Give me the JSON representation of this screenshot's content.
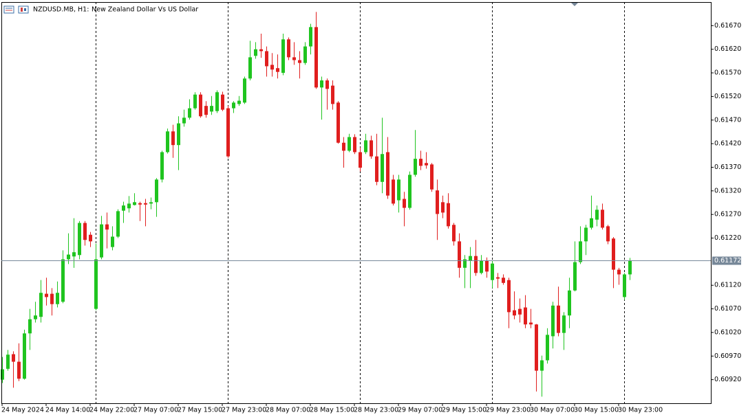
{
  "chart_data": {
    "type": "candlestick",
    "symbol": "NZDUSD.MB, H1:",
    "title": "New Zealand Dollar Vs US Dollar",
    "up_color": "#1fc41f",
    "down_color": "#e01e1e",
    "current_price": 0.61172,
    "current_price_color": "#778899",
    "ylim": [
      0.6087,
      0.6172
    ],
    "yticks": [
      {
        "value": 0.6092,
        "label": "0.60920"
      },
      {
        "value": 0.6097,
        "label": "0.60970"
      },
      {
        "value": 0.6102,
        "label": "0.61020"
      },
      {
        "value": 0.6107,
        "label": "0.61070"
      },
      {
        "value": 0.6112,
        "label": "0.61120"
      },
      {
        "value": 0.6122,
        "label": "0.61220"
      },
      {
        "value": 0.6127,
        "label": "0.61270"
      },
      {
        "value": 0.6132,
        "label": "0.61320"
      },
      {
        "value": 0.6137,
        "label": "0.61370"
      },
      {
        "value": 0.6142,
        "label": "0.61420"
      },
      {
        "value": 0.6147,
        "label": "0.61470"
      },
      {
        "value": 0.6152,
        "label": "0.61520"
      },
      {
        "value": 0.6157,
        "label": "0.61570"
      },
      {
        "value": 0.6162,
        "label": "0.61620"
      },
      {
        "value": 0.6167,
        "label": "0.61670"
      }
    ],
    "categories": [
      "24 May 2024",
      null,
      null,
      null,
      null,
      null,
      null,
      null,
      "24 May 14:00",
      null,
      null,
      null,
      null,
      null,
      null,
      null,
      "24 May 22:00",
      null,
      null,
      null,
      null,
      null,
      null,
      null,
      "27 May 07:00",
      null,
      null,
      null,
      null,
      null,
      null,
      null,
      "27 May 15:00",
      null,
      null,
      null,
      null,
      null,
      null,
      null,
      "27 May 23:00",
      null,
      null,
      null,
      null,
      null,
      null,
      null,
      "28 May 07:00",
      null,
      null,
      null,
      null,
      null,
      null,
      null,
      "28 May 15:00",
      null,
      null,
      null,
      null,
      null,
      null,
      null,
      "28 May 23:00",
      null,
      null,
      null,
      null,
      null,
      null,
      null,
      "29 May 07:00",
      null,
      null,
      null,
      null,
      null,
      null,
      null,
      "29 May 15:00",
      null,
      null,
      null,
      null,
      null,
      null,
      null,
      "29 May 23:00",
      null,
      null,
      null,
      null,
      null,
      null,
      null,
      "30 May 07:00",
      null,
      null,
      null,
      null,
      null,
      null,
      null,
      "30 May 15:00",
      null,
      null,
      null,
      null,
      null,
      null,
      null,
      "30 May 23:00",
      null,
      null
    ],
    "open": [
      0.6092,
      0.60943,
      0.60974,
      0.60958,
      0.60922,
      0.61018,
      0.61048,
      0.61053,
      0.61102,
      0.61102,
      0.6108,
      0.61085,
      0.61175,
      0.61181,
      0.61184,
      0.61252,
      0.61227,
      0.6107,
      0.61179,
      0.61249,
      0.61201,
      0.61223,
      0.61278,
      0.61283,
      0.6129,
      0.61294,
      0.61294,
      0.61293,
      0.61296,
      0.61344,
      0.61402,
      0.61446,
      0.61417,
      0.61463,
      0.61475,
      0.61495,
      0.61524,
      0.615,
      0.61488,
      0.61489,
      0.61524,
      0.61495,
      0.61495,
      0.61504,
      0.61507,
      0.61558,
      0.61606,
      0.6162,
      0.61616,
      0.61587,
      0.6158,
      0.6157,
      0.61641,
      0.61603,
      0.61597,
      0.61591,
      0.61626,
      0.61667,
      0.61539,
      0.61554,
      0.61543,
      0.61507,
      0.61422,
      0.61405,
      0.61434,
      0.61402,
      0.61402,
      0.61427,
      0.61393,
      0.61339,
      0.61402,
      0.61344,
      0.613,
      0.61303,
      0.61284,
      0.61354,
      0.61388,
      0.61379,
      0.61376,
      0.61321,
      0.61296,
      0.61294,
      0.61248,
      0.61213,
      0.61157,
      0.61172,
      0.61182,
      0.61146,
      0.61172,
      0.61131,
      0.61137,
      0.61136,
      0.61131,
      0.61067,
      0.6107,
      0.61073,
      0.61041,
      0.61037,
      0.60939,
      0.60961,
      0.61012,
      0.61077,
      0.61019,
      0.61056,
      0.61109,
      0.61169,
      0.61213,
      0.61242,
      0.61259,
      0.6128,
      0.61245,
      0.61219,
      0.61153,
      0.61095,
      0.61143
    ],
    "high": [
      0.60968,
      0.60983,
      0.6098,
      0.60997,
      0.61026,
      0.6107,
      0.61085,
      0.61131,
      0.61136,
      0.61114,
      0.61128,
      0.61194,
      0.6123,
      0.61262,
      0.61256,
      0.61256,
      0.61233,
      0.61208,
      0.61267,
      0.61274,
      0.61245,
      0.61281,
      0.61297,
      0.61309,
      0.61315,
      0.61297,
      0.61303,
      0.61306,
      0.61347,
      0.61405,
      0.61452,
      0.6146,
      0.61478,
      0.61492,
      0.61514,
      0.61529,
      0.61529,
      0.6151,
      0.61521,
      0.61533,
      0.6153,
      0.615,
      0.6151,
      0.61521,
      0.61562,
      0.61638,
      0.61635,
      0.61653,
      0.61626,
      0.61612,
      0.61609,
      0.61653,
      0.61645,
      0.61635,
      0.61616,
      0.61635,
      0.61674,
      0.61699,
      0.61562,
      0.61558,
      0.61554,
      0.6151,
      0.61434,
      0.61441,
      0.6144,
      0.61412,
      0.61441,
      0.61437,
      0.61441,
      0.61475,
      0.61434,
      0.61354,
      0.61354,
      0.61318,
      0.61361,
      0.61449,
      0.61405,
      0.61402,
      0.61379,
      0.61344,
      0.6131,
      0.61315,
      0.61252,
      0.6123,
      0.61184,
      0.61201,
      0.61216,
      0.61184,
      0.61179,
      0.61172,
      0.61146,
      0.61143,
      0.61136,
      0.61107,
      0.61092,
      0.61099,
      0.6107,
      0.61038,
      0.60971,
      0.61029,
      0.61085,
      0.61117,
      0.61063,
      0.61136,
      0.61213,
      0.61245,
      0.61248,
      0.6131,
      0.61289,
      0.61293,
      0.61248,
      0.61222,
      0.61157,
      0.61146,
      0.61178
    ],
    "low": [
      0.60913,
      0.60939,
      0.60903,
      0.60917,
      0.6092,
      0.60983,
      0.61041,
      0.61041,
      0.61077,
      0.61056,
      0.61073,
      0.61082,
      0.61165,
      0.61157,
      0.61175,
      0.61204,
      0.61201,
      0.61067,
      0.61175,
      0.61198,
      0.61194,
      0.6122,
      0.61252,
      0.61274,
      0.61289,
      0.61256,
      0.61245,
      0.61281,
      0.61265,
      0.61338,
      0.61399,
      0.6139,
      0.61364,
      0.61456,
      0.61471,
      0.61492,
      0.61475,
      0.61475,
      0.61481,
      0.61485,
      0.61489,
      0.6139,
      0.61485,
      0.615,
      0.61504,
      0.61554,
      0.616,
      0.61602,
      0.61562,
      0.61562,
      0.61558,
      0.61565,
      0.61597,
      0.61587,
      0.61558,
      0.61587,
      0.61609,
      0.61536,
      0.61471,
      0.61492,
      0.61492,
      0.6142,
      0.61369,
      0.61402,
      0.61398,
      0.61361,
      0.61398,
      0.61388,
      0.61332,
      0.61315,
      0.61303,
      0.61289,
      0.61274,
      0.61245,
      0.6128,
      0.6135,
      0.61364,
      0.61367,
      0.61318,
      0.61216,
      0.61262,
      0.6124,
      0.61204,
      0.61136,
      0.61114,
      0.61114,
      0.6114,
      0.61143,
      0.61136,
      0.61114,
      0.61114,
      0.61121,
      0.61029,
      0.61048,
      0.61041,
      0.61029,
      0.61029,
      0.60895,
      0.60884,
      0.60954,
      0.60986,
      0.61012,
      0.60983,
      0.61029,
      0.61107,
      0.61165,
      0.61184,
      0.61238,
      0.61245,
      0.61238,
      0.61207,
      0.61114,
      0.61121,
      0.61089,
      0.61131
    ],
    "close": [
      0.60942,
      0.60973,
      0.60958,
      0.60922,
      0.61018,
      0.61048,
      0.61056,
      0.61104,
      0.61095,
      0.6108,
      0.61104,
      0.61175,
      0.61185,
      0.6119,
      0.61252,
      0.61216,
      0.61213,
      0.61175,
      0.61249,
      0.61238,
      0.61223,
      0.61277,
      0.61289,
      0.61293,
      0.61296,
      0.61291,
      0.61291,
      0.61296,
      0.61344,
      0.61402,
      0.61446,
      0.61417,
      0.61463,
      0.61475,
      0.61495,
      0.61524,
      0.61478,
      0.61481,
      0.615,
      0.61529,
      0.61492,
      0.61393,
      0.61507,
      0.61511,
      0.61558,
      0.61603,
      0.6162,
      0.61616,
      0.61584,
      0.61577,
      0.61572,
      0.61641,
      0.61603,
      0.61597,
      0.61591,
      0.61626,
      0.61667,
      0.61539,
      0.61554,
      0.61536,
      0.61504,
      0.61422,
      0.61405,
      0.61434,
      0.61402,
      0.61369,
      0.61427,
      0.61393,
      0.61339,
      0.61398,
      0.6131,
      0.61293,
      0.61344,
      0.61284,
      0.61354,
      0.61388,
      0.61373,
      0.61374,
      0.61323,
      0.61271,
      0.61274,
      0.61245,
      0.61213,
      0.61157,
      0.61175,
      0.61182,
      0.61146,
      0.61172,
      0.61149,
      0.61166,
      0.61134,
      0.61125,
      0.61063,
      0.61056,
      0.61058,
      0.61037,
      0.61037,
      0.60939,
      0.60961,
      0.61015,
      0.61077,
      0.61019,
      0.61056,
      0.61109,
      0.61169,
      0.61213,
      0.61242,
      0.61262,
      0.6128,
      0.61242,
      0.61213,
      0.61153,
      0.61143,
      0.61143,
      0.61172
    ]
  }
}
